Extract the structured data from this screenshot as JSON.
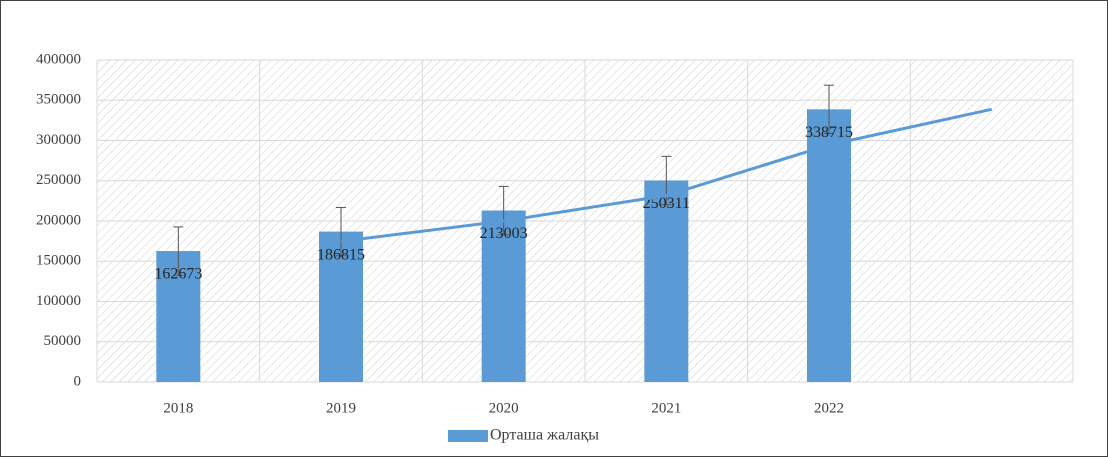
{
  "chart_data": {
    "type": "bar",
    "categories": [
      "2018",
      "2019",
      "2020",
      "2021",
      "2022",
      null
    ],
    "series": [
      {
        "name": "Орташа жалақы",
        "type": "bar",
        "color": "#5b9bd5",
        "values": [
          162673,
          186815,
          213003,
          250311,
          338715,
          null
        ],
        "errors": [
          30000,
          30000,
          30000,
          30000,
          30000,
          null
        ]
      },
      {
        "type": "line",
        "color": "#5b9bd5",
        "values": [
          null,
          174744,
          199909,
          231657,
          294513,
          338715
        ]
      }
    ],
    "ylim": [
      0,
      400000
    ],
    "yticks": [
      0,
      50000,
      100000,
      150000,
      200000,
      250000,
      300000,
      350000,
      400000
    ],
    "grid": true,
    "legend": "bottom"
  }
}
